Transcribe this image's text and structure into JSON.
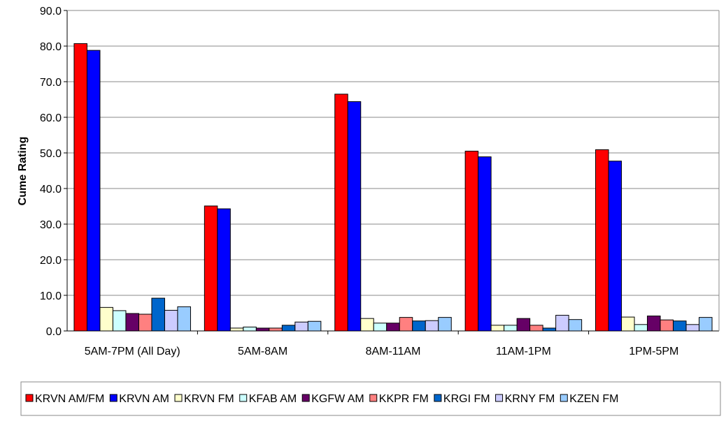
{
  "chart_data": {
    "type": "bar",
    "title": "",
    "xlabel": "",
    "ylabel": "Cume Rating",
    "ylim": [
      0,
      90
    ],
    "yticks": [
      "0.0",
      "10.0",
      "20.0",
      "30.0",
      "40.0",
      "50.0",
      "60.0",
      "70.0",
      "80.0",
      "90.0"
    ],
    "grid": true,
    "legend_position": "bottom",
    "categories": [
      "5AM-7PM (All Day)",
      "5AM-8AM",
      "8AM-11AM",
      "11AM-1PM",
      "1PM-5PM"
    ],
    "series": [
      {
        "name": "KRVN AM/FM",
        "color": "#ff0000",
        "values": [
          80.7,
          35.1,
          66.5,
          50.5,
          50.9
        ]
      },
      {
        "name": "KRVN AM",
        "color": "#0000ff",
        "values": [
          78.8,
          34.3,
          64.4,
          48.9,
          47.7
        ]
      },
      {
        "name": "KRVN FM",
        "color": "#ffffcc",
        "values": [
          6.6,
          0.8,
          3.5,
          1.6,
          3.9
        ]
      },
      {
        "name": "KFAB AM",
        "color": "#ccffff",
        "values": [
          5.7,
          1.1,
          2.2,
          1.6,
          1.8
        ]
      },
      {
        "name": "KGFW AM",
        "color": "#660066",
        "values": [
          4.9,
          0.8,
          2.2,
          3.5,
          4.2
        ]
      },
      {
        "name": "KKPR FM",
        "color": "#ff8080",
        "values": [
          4.7,
          0.8,
          3.8,
          1.6,
          3.1
        ]
      },
      {
        "name": "KRGI FM",
        "color": "#0066cc",
        "values": [
          9.2,
          1.6,
          2.8,
          0.8,
          2.8
        ]
      },
      {
        "name": "KRNY FM",
        "color": "#ccccff",
        "values": [
          5.8,
          2.5,
          2.9,
          4.4,
          1.8
        ]
      },
      {
        "name": "KZEN FM",
        "color": "#99ccff",
        "values": [
          6.8,
          2.7,
          3.8,
          3.2,
          3.8
        ]
      }
    ]
  }
}
